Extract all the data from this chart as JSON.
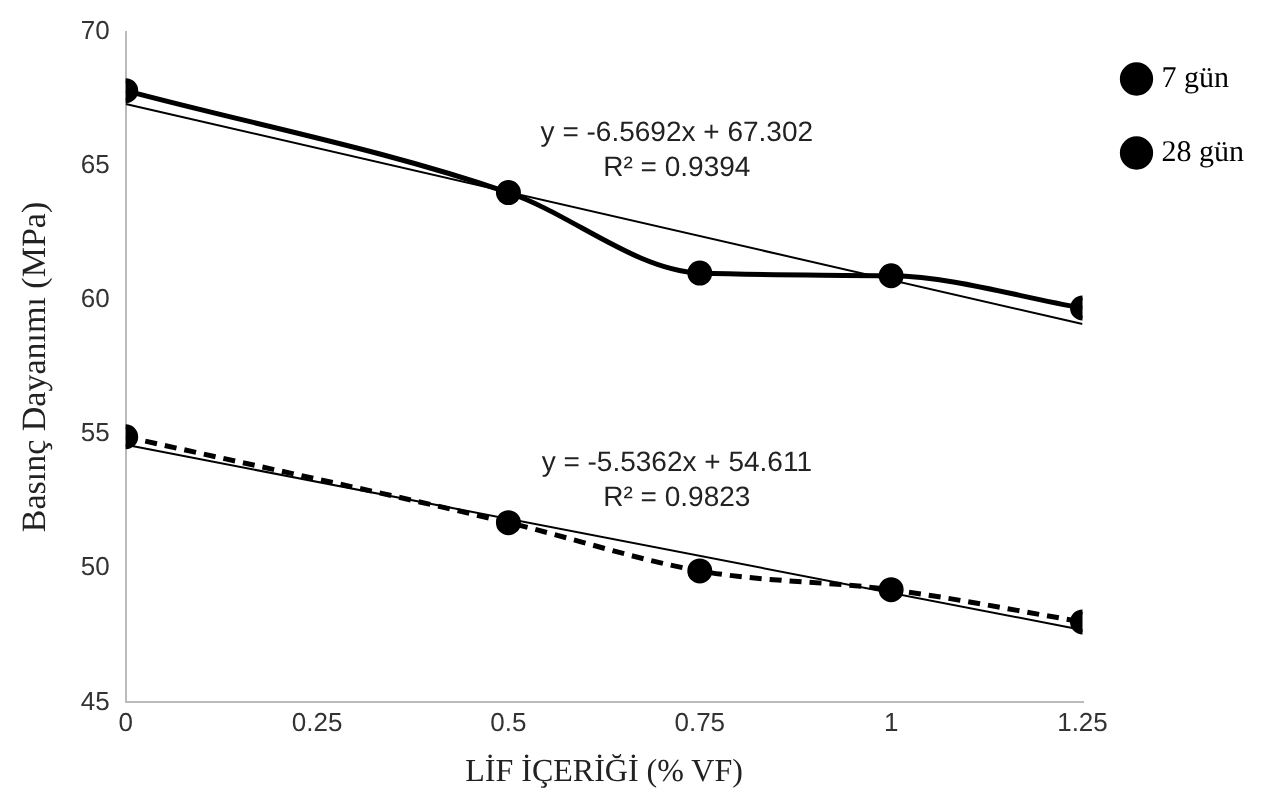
{
  "chart_data": {
    "type": "line",
    "xlabel": "LİF İÇERİĞİ (% VF)",
    "ylabel": "Basınç Dayanımı (MPa)",
    "xlim": [
      0,
      1.25
    ],
    "xticks": [
      0,
      0.25,
      0.5,
      0.75,
      1,
      1.25
    ],
    "ylim": [
      45,
      70
    ],
    "yticks": [
      45,
      50,
      55,
      60,
      65,
      70
    ],
    "grid": false,
    "legend": "top right",
    "marker": "circle",
    "series": [
      {
        "name": "7 gün",
        "color": "#000000",
        "line_style": "dashed",
        "x": [
          0,
          0.5,
          0.75,
          1,
          1.25
        ],
        "values": [
          54.9,
          51.7,
          49.9,
          49.2,
          48.0
        ]
      },
      {
        "name": "28 gün",
        "color": "#000000",
        "line_style": "solid",
        "x": [
          0,
          0.5,
          0.75,
          1,
          1.25
        ],
        "values": [
          67.8,
          64.0,
          61.0,
          60.9,
          59.7
        ]
      },
      {
        "type": "line",
        "color": "#000000",
        "marker": "none",
        "x": [
          0,
          1.25
        ],
        "values": [
          54.6,
          47.7
        ]
      },
      {
        "type": "line",
        "color": "#000000",
        "marker": "none",
        "x": [
          0,
          1.25
        ],
        "values": [
          67.3,
          59.1
        ]
      }
    ],
    "annotations": [
      "y = -6.5692x + 67.302",
      "R² = 0.9394",
      "y = -5.5362x + 54.611",
      "R² = 0.9823"
    ]
  }
}
